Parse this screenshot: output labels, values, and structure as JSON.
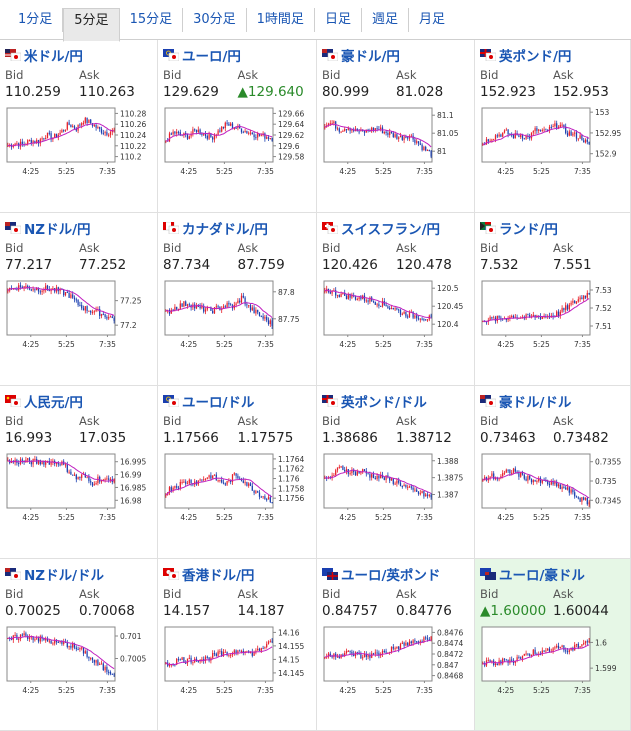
{
  "tabs": [
    "1分足",
    "5分足",
    "15分足",
    "30分足",
    "1時間足",
    "日足",
    "週足",
    "月足"
  ],
  "active_tab": 1,
  "bid_label": "Bid",
  "ask_label": "Ask",
  "x_ticks": [
    "4:25",
    "5:25",
    "7:35"
  ],
  "colors": {
    "link": "#1a56b3",
    "up": "#e8202a",
    "down": "#1a3fb0",
    "ma1": "#c020c0",
    "ma2": "#2aa8a8",
    "highlight_bg": "#e6f7e6",
    "bid_up": "#2a8a2a"
  },
  "pairs": [
    {
      "name": "米ドル/円",
      "flag": "us",
      "bid": "110.259",
      "ask": "110.263",
      "ticks": [
        "110.28",
        "110.26",
        "110.24",
        "110.22",
        "110.2"
      ],
      "ylim": [
        110.19,
        110.29
      ],
      "trend": [
        0.3,
        0.35,
        0.32,
        0.4,
        0.38,
        0.5,
        0.45,
        0.55,
        0.7,
        0.62,
        0.78,
        0.72,
        0.6,
        0.55,
        0.58
      ]
    },
    {
      "name": "ユーロ/円",
      "flag": "eu",
      "bid": "129.629",
      "ask": "129.640",
      "ask_up": true,
      "ticks": [
        "129.66",
        "129.64",
        "129.62",
        "129.6",
        "129.58"
      ],
      "ylim": [
        129.57,
        129.67
      ],
      "trend": [
        0.4,
        0.55,
        0.5,
        0.48,
        0.6,
        0.52,
        0.45,
        0.58,
        0.7,
        0.65,
        0.6,
        0.55,
        0.5,
        0.48,
        0.45
      ]
    },
    {
      "name": "豪ドル/円",
      "flag": "au",
      "bid": "80.999",
      "ask": "81.028",
      "ticks": [
        "81.1",
        "81.05",
        "81"
      ],
      "ylim": [
        80.97,
        81.12
      ],
      "trend": [
        0.7,
        0.72,
        0.6,
        0.65,
        0.58,
        0.55,
        0.6,
        0.62,
        0.55,
        0.5,
        0.45,
        0.5,
        0.4,
        0.25,
        0.15
      ]
    },
    {
      "name": "英ポンド/円",
      "flag": "uk",
      "bid": "152.923",
      "ask": "152.953",
      "ticks": [
        "153",
        "152.95",
        "152.9"
      ],
      "ylim": [
        152.88,
        153.01
      ],
      "trend": [
        0.35,
        0.45,
        0.5,
        0.55,
        0.48,
        0.5,
        0.45,
        0.6,
        0.55,
        0.62,
        0.7,
        0.55,
        0.5,
        0.45,
        0.3
      ]
    },
    {
      "name": "NZドル/円",
      "flag": "nz",
      "bid": "77.217",
      "ask": "77.252",
      "ticks": [
        "77.25",
        "77.2"
      ],
      "ylim": [
        77.18,
        77.29
      ],
      "trend": [
        0.85,
        0.88,
        0.9,
        0.87,
        0.85,
        0.86,
        0.84,
        0.8,
        0.75,
        0.6,
        0.5,
        0.45,
        0.42,
        0.35,
        0.3
      ]
    },
    {
      "name": "カナダドル/円",
      "flag": "ca",
      "bid": "87.734",
      "ask": "87.759",
      "ticks": [
        "87.8",
        "87.75"
      ],
      "ylim": [
        87.72,
        87.82
      ],
      "trend": [
        0.4,
        0.5,
        0.55,
        0.6,
        0.5,
        0.48,
        0.45,
        0.5,
        0.55,
        0.52,
        0.7,
        0.5,
        0.4,
        0.3,
        0.2
      ]
    },
    {
      "name": "スイスフラン/円",
      "flag": "ch",
      "bid": "120.426",
      "ask": "120.478",
      "ticks": [
        "120.5",
        "120.45",
        "120.4"
      ],
      "ylim": [
        120.37,
        120.52
      ],
      "trend": [
        0.85,
        0.8,
        0.75,
        0.72,
        0.7,
        0.68,
        0.65,
        0.6,
        0.55,
        0.5,
        0.42,
        0.38,
        0.35,
        0.33,
        0.3
      ]
    },
    {
      "name": "ランド/円",
      "flag": "za",
      "bid": "7.532",
      "ask": "7.551",
      "ticks": [
        "7.53",
        "7.52",
        "7.51"
      ],
      "ylim": [
        7.505,
        7.535
      ],
      "trend": [
        0.3,
        0.28,
        0.3,
        0.32,
        0.35,
        0.33,
        0.32,
        0.35,
        0.34,
        0.36,
        0.4,
        0.5,
        0.6,
        0.7,
        0.78
      ]
    },
    {
      "name": "人民元/円",
      "flag": "cn",
      "bid": "16.993",
      "ask": "17.035",
      "ticks": [
        "16.995",
        "16.99",
        "16.985",
        "16.98"
      ],
      "ylim": [
        16.977,
        16.998
      ],
      "trend": [
        0.85,
        0.86,
        0.87,
        0.86,
        0.85,
        0.86,
        0.85,
        0.84,
        0.7,
        0.55,
        0.6,
        0.45,
        0.55,
        0.5,
        0.55
      ]
    },
    {
      "name": "ユーロ/ドル",
      "flag": "eu",
      "bid": "1.17566",
      "ask": "1.17575",
      "ticks": [
        "1.1764",
        "1.1762",
        "1.176",
        "1.1758",
        "1.1756"
      ],
      "ylim": [
        1.1754,
        1.1765
      ],
      "trend": [
        0.3,
        0.4,
        0.45,
        0.5,
        0.48,
        0.55,
        0.6,
        0.5,
        0.45,
        0.6,
        0.55,
        0.4,
        0.3,
        0.2,
        0.15
      ]
    },
    {
      "name": "英ポンド/ドル",
      "flag": "uk",
      "bid": "1.38686",
      "ask": "1.38712",
      "ticks": [
        "1.388",
        "1.3875",
        "1.387"
      ],
      "ylim": [
        1.3866,
        1.3882
      ],
      "trend": [
        0.5,
        0.6,
        0.75,
        0.7,
        0.65,
        0.68,
        0.6,
        0.58,
        0.55,
        0.5,
        0.45,
        0.35,
        0.3,
        0.25,
        0.2
      ]
    },
    {
      "name": "豪ドル/ドル",
      "flag": "au",
      "bid": "0.73463",
      "ask": "0.73482",
      "ticks": [
        "0.7355",
        "0.735",
        "0.7345"
      ],
      "ylim": [
        0.7343,
        0.7357
      ],
      "trend": [
        0.5,
        0.6,
        0.55,
        0.65,
        0.7,
        0.6,
        0.55,
        0.5,
        0.48,
        0.45,
        0.4,
        0.35,
        0.25,
        0.15,
        0.1
      ]
    },
    {
      "name": "NZドル/ドル",
      "flag": "nz",
      "bid": "0.70025",
      "ask": "0.70068",
      "ticks": [
        "0.701",
        "0.7005"
      ],
      "ylim": [
        0.7,
        0.7012
      ],
      "trend": [
        0.75,
        0.8,
        0.85,
        0.82,
        0.78,
        0.75,
        0.72,
        0.7,
        0.68,
        0.6,
        0.55,
        0.4,
        0.3,
        0.2,
        0.15
      ]
    },
    {
      "name": "香港ドル/円",
      "flag": "hk",
      "bid": "14.157",
      "ask": "14.187",
      "ticks": [
        "14.16",
        "14.155",
        "14.15",
        "14.145"
      ],
      "ylim": [
        14.142,
        14.162
      ],
      "trend": [
        0.3,
        0.35,
        0.4,
        0.38,
        0.42,
        0.4,
        0.45,
        0.5,
        0.48,
        0.55,
        0.6,
        0.5,
        0.55,
        0.65,
        0.7
      ]
    },
    {
      "name": "ユーロ/英ポンド",
      "flag": "euuk",
      "bid": "0.84757",
      "ask": "0.84776",
      "ticks": [
        "0.8476",
        "0.8474",
        "0.8472",
        "0.847",
        "0.8468"
      ],
      "ylim": [
        0.8467,
        0.8477
      ],
      "trend": [
        0.45,
        0.5,
        0.48,
        0.52,
        0.5,
        0.45,
        0.48,
        0.5,
        0.55,
        0.6,
        0.65,
        0.7,
        0.72,
        0.75,
        0.8
      ]
    },
    {
      "name": "ユーロ/豪ドル",
      "flag": "euau",
      "bid": "1.60000",
      "ask": "1.60044",
      "bid_up": true,
      "highlight": true,
      "ticks": [
        "1.6",
        "1.599"
      ],
      "ylim": [
        1.5985,
        1.6006
      ],
      "trend": [
        0.3,
        0.35,
        0.32,
        0.4,
        0.38,
        0.45,
        0.5,
        0.55,
        0.52,
        0.6,
        0.65,
        0.55,
        0.6,
        0.7,
        0.75
      ]
    }
  ]
}
